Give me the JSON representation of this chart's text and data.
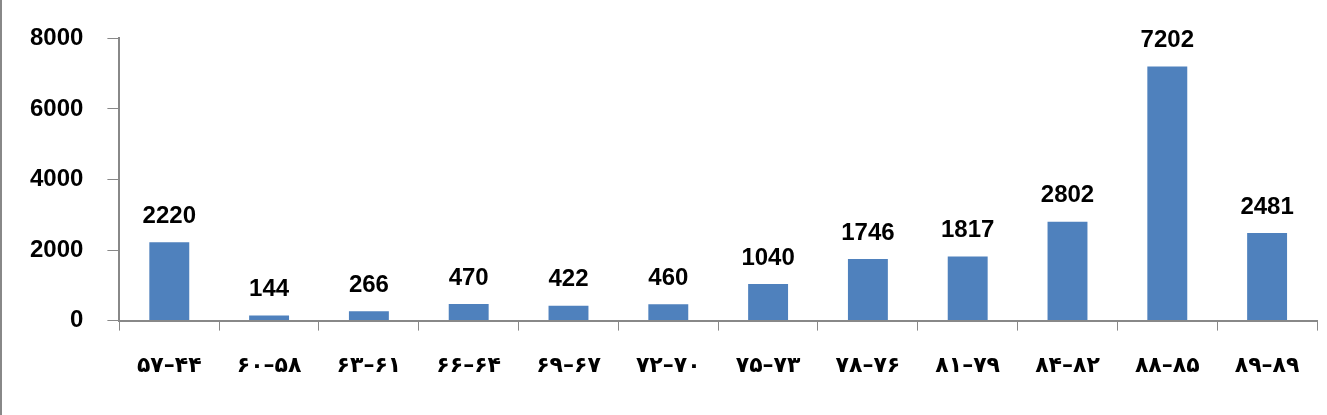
{
  "chart_data": {
    "type": "bar",
    "categories": [
      "۵۷–۴۴",
      "۶۰–۵۸",
      "۶۳–۶۱",
      "۶۶–۶۴",
      "۶۹–۶۷",
      "۷۲–۷۰",
      "۷۵–۷۳",
      "۷۸–۷۶",
      "۸۱–۷۹",
      "۸۴–۸۲",
      "۸۸–۸۵",
      "۸۹–۸۹"
    ],
    "values": [
      2220,
      144,
      266,
      470,
      422,
      460,
      1040,
      1746,
      1817,
      2802,
      7202,
      2481
    ],
    "color": "#4f81bd",
    "ylim": [
      0,
      8000
    ],
    "yticks": [
      0,
      2000,
      4000,
      6000,
      8000
    ],
    "grid": false,
    "legend": false,
    "data_labels": true
  }
}
